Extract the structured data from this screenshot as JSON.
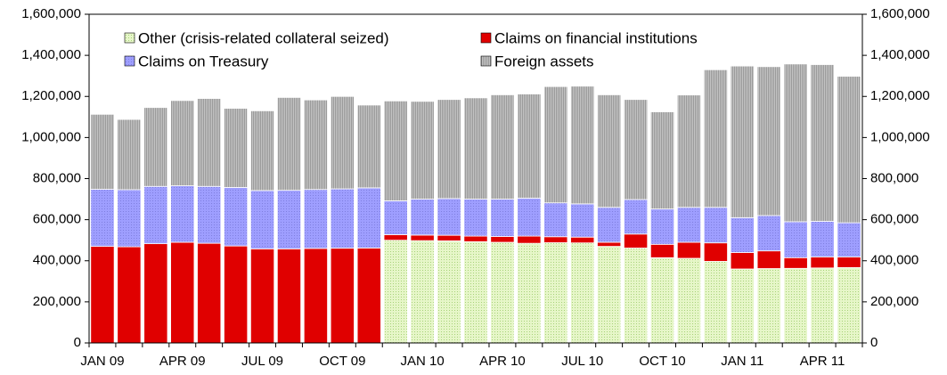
{
  "chart_data": {
    "type": "stacked_bar",
    "categories": [
      "JAN 09",
      null,
      null,
      "APR 09",
      null,
      null,
      "JUL 09",
      null,
      null,
      "OCT 09",
      null,
      null,
      "JAN 10",
      null,
      null,
      "APR 10",
      null,
      null,
      "JUL 10",
      null,
      null,
      "OCT 10",
      null,
      null,
      "JAN 11",
      null,
      null,
      "APR 11",
      null
    ],
    "series": [
      {
        "name": "Other (crisis-related collateral seized)",
        "color": "#d8efb0",
        "values": [
          0,
          0,
          0,
          0,
          0,
          0,
          0,
          0,
          0,
          0,
          0,
          500000,
          498000,
          497000,
          493000,
          490000,
          485000,
          488000,
          487000,
          470000,
          462000,
          415000,
          412000,
          397000,
          360000,
          362000,
          363000,
          365000,
          367000
        ]
      },
      {
        "name": "Claims on financial institutions",
        "color": "#e00000",
        "values": [
          470000,
          468000,
          483000,
          490000,
          485000,
          472000,
          458000,
          458000,
          460000,
          461000,
          462000,
          27000,
          27000,
          27000,
          27000,
          28000,
          35000,
          29000,
          28000,
          20000,
          68000,
          65000,
          78000,
          90000,
          80000,
          86000,
          52000,
          53000,
          51000
        ]
      },
      {
        "name": "Claims on Treasury",
        "color": "#9999ff",
        "values": [
          278000,
          278000,
          279000,
          275000,
          277000,
          285000,
          284000,
          285000,
          287000,
          289000,
          293000,
          165000,
          175000,
          179000,
          180000,
          182000,
          185000,
          165000,
          162000,
          170000,
          168000,
          172000,
          170000,
          173000,
          170000,
          172000,
          175000,
          174000,
          167000
        ]
      },
      {
        "name": "Foreign assets",
        "color": "#b3b3b3",
        "values": [
          365000,
          342000,
          384000,
          415000,
          428000,
          385000,
          388000,
          452000,
          436000,
          450000,
          403000,
          486000,
          476000,
          482000,
          493000,
          508000,
          507000,
          566000,
          573000,
          548000,
          487000,
          473000,
          547000,
          670000,
          738000,
          725000,
          768000,
          763000,
          713000
        ]
      }
    ],
    "ylim": [
      0,
      1600000
    ],
    "yticks": [
      0,
      {
        "value": 200000,
        "label": "200,000"
      },
      {
        "value": 400000,
        "label": "400,000"
      },
      {
        "value": 600000,
        "label": "600,000"
      },
      {
        "value": 800000,
        "label": "800,000"
      },
      {
        "value": 1000000,
        "label": "1,000,000"
      },
      {
        "value": 1200000,
        "label": "1,200,000"
      },
      {
        "value": 1400000,
        "label": "1,400,000"
      },
      {
        "value": 1600000,
        "label": "1,600,000"
      }
    ],
    "y2lim": [
      0,
      1600000
    ],
    "y2ticks": [
      0,
      {
        "value": 200000,
        "label": "200,000"
      },
      {
        "value": 400000,
        "label": "400,000"
      },
      {
        "value": 600000,
        "label": "600,000"
      },
      {
        "value": 800000,
        "label": "800,000"
      },
      {
        "value": 1000000,
        "label": "1,000,000"
      },
      {
        "value": 1200000,
        "label": "1,200,000"
      },
      {
        "value": 1400000,
        "label": "1,400,000"
      },
      {
        "value": 1600000,
        "label": "1,600,000"
      }
    ]
  }
}
